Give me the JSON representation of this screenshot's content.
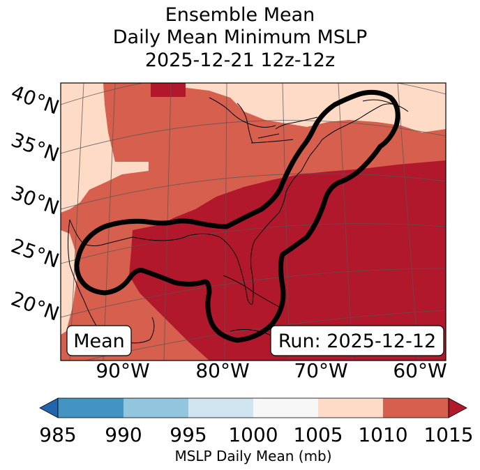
{
  "title": {
    "line1": "Ensemble Mean",
    "line2": "Daily Mean Minimum MSLP",
    "line3": "2025-12-21 12z-12z"
  },
  "map": {
    "lat_labels": [
      "40°N",
      "35°N",
      "30°N",
      "25°N",
      "20°N"
    ],
    "lon_labels": [
      "90°W",
      "80°W",
      "70°W",
      "60°W"
    ],
    "mean_label": "Mean",
    "run_label": "Run: 2025-12-12"
  },
  "colorbar": {
    "ticks": [
      "985",
      "990",
      "995",
      "1000",
      "1005",
      "1010",
      "1015"
    ],
    "label": "MSLP Daily Mean (mb)",
    "colors": [
      "#2166ac",
      "#4393c3",
      "#92c5de",
      "#d1e5f0",
      "#f7f7f7",
      "#fddbc7",
      "#d6604d",
      "#b2182b"
    ]
  },
  "colors": {
    "band_1005_1010": "#fddbc7",
    "band_1010_1015": "#d6604d",
    "band_above_1015": "#b2182b",
    "contour": "#000000"
  }
}
